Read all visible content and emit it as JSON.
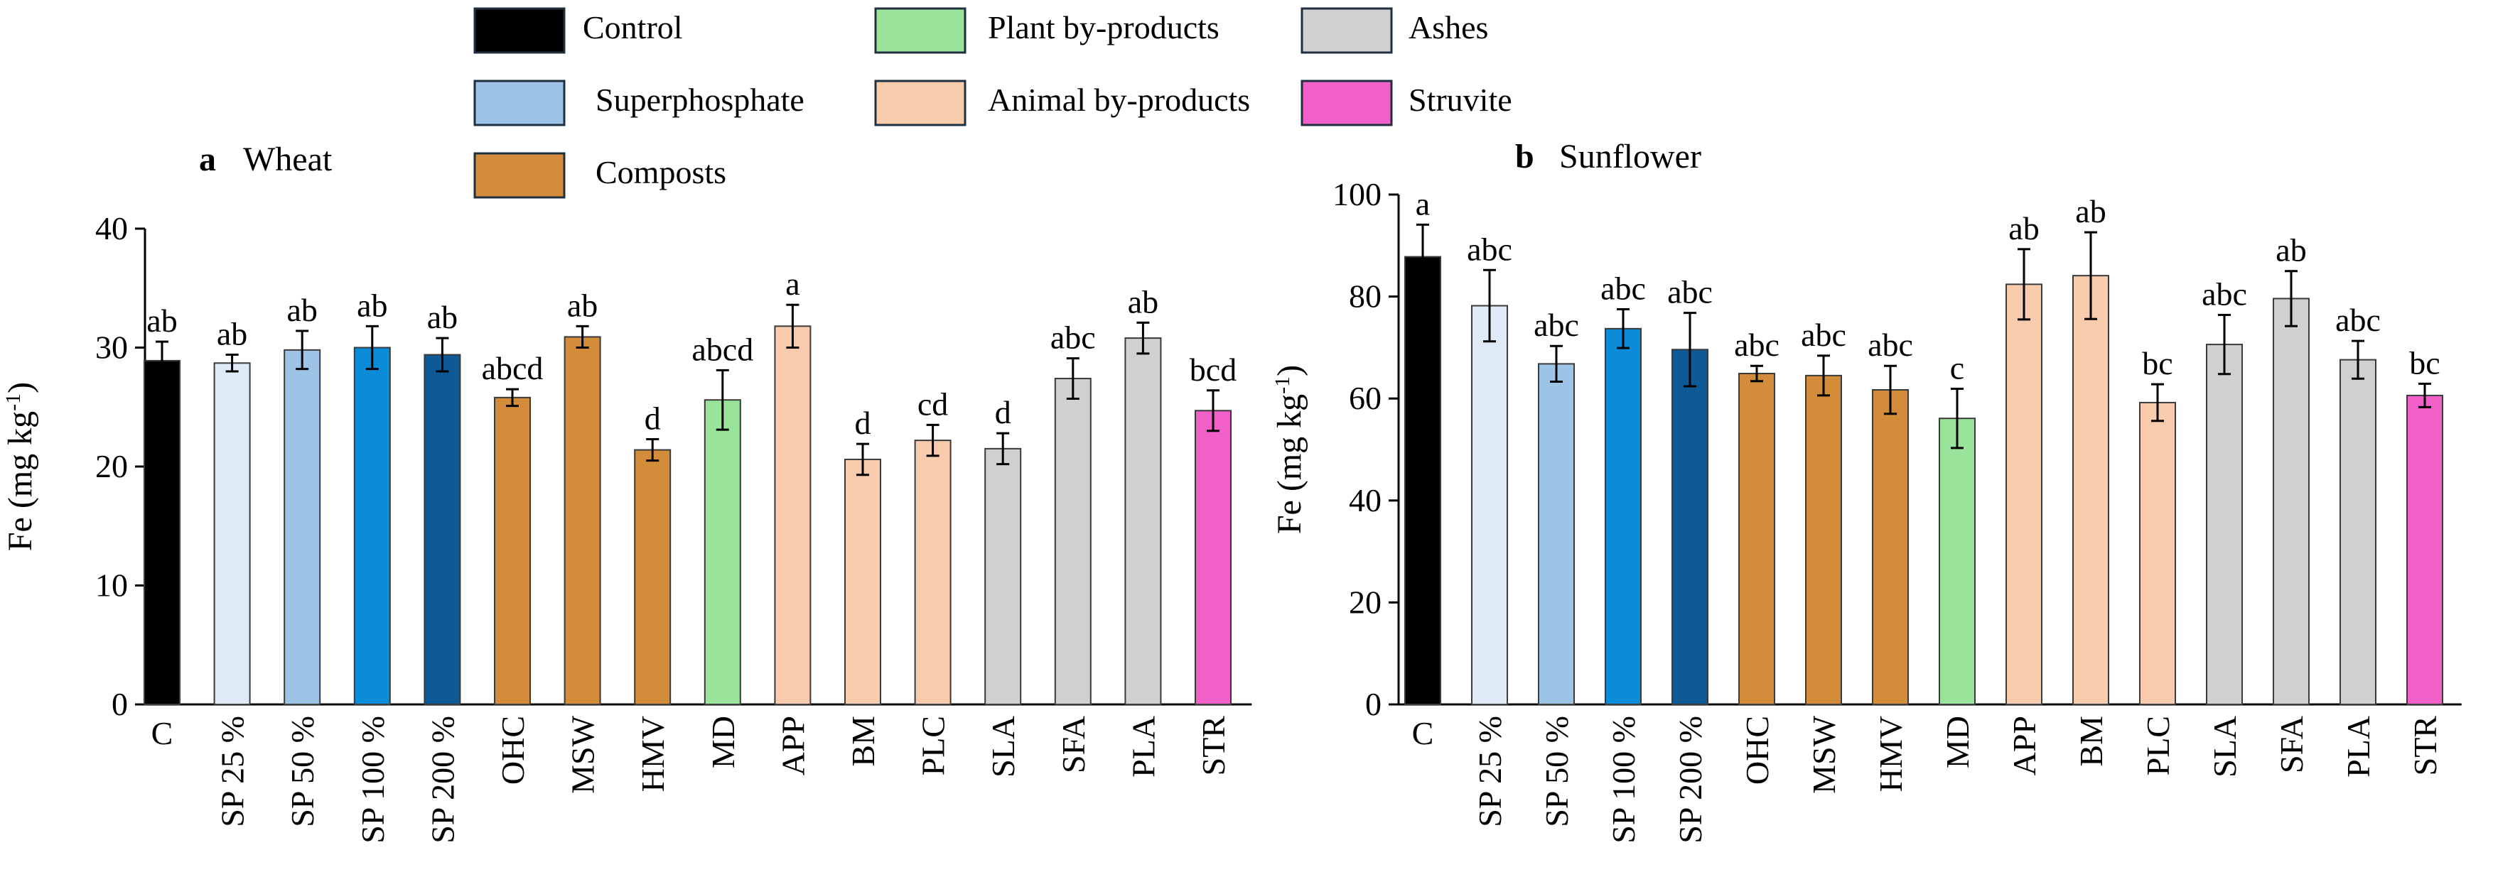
{
  "legend": [
    {
      "key": "control",
      "label": "Control",
      "color": "#000000"
    },
    {
      "key": "superphosphate",
      "label": "Superphosphate",
      "color": "#9DC3E6"
    },
    {
      "key": "composts",
      "label": "Composts",
      "color": "#D38D3A"
    },
    {
      "key": "plant",
      "label": "Plant by-products",
      "color": "#9AE39B"
    },
    {
      "key": "animal",
      "label": "Animal by-products",
      "color": "#F8CBAD"
    },
    {
      "key": "ashes",
      "label": "Ashes",
      "color": "#D0D0D0"
    },
    {
      "key": "struvite",
      "label": "Struvite",
      "color": "#F060C8"
    }
  ],
  "chart_data": [
    {
      "type": "bar",
      "panel_letter": "a",
      "title": "Wheat",
      "xlabel": "",
      "ylabel": "Fe (mg kg",
      "ylabel_sup": "-1",
      "ylabel_close": ")",
      "ylim": [
        0,
        40
      ],
      "yticks": [
        "0",
        "10",
        "20",
        "30",
        "40"
      ],
      "categories": [
        "C",
        "SP 25 %",
        "SP 50 %",
        "SP 100 %",
        "SP 200 %",
        "OHC",
        "MSW",
        "HMV",
        "MD",
        "APP",
        "BM",
        "PLC",
        "SLA",
        "SFA",
        "PLA",
        "STR"
      ],
      "values": [
        28.9,
        28.7,
        29.8,
        30.0,
        29.4,
        25.8,
        30.9,
        21.4,
        25.6,
        31.8,
        20.6,
        22.2,
        21.5,
        27.4,
        30.8,
        24.7
      ],
      "errors": [
        1.6,
        0.7,
        1.6,
        1.8,
        1.4,
        0.7,
        0.9,
        0.9,
        2.5,
        1.8,
        1.3,
        1.3,
        1.3,
        1.7,
        1.3,
        1.7
      ],
      "letters": [
        "ab",
        "ab",
        "ab",
        "ab",
        "ab",
        "abcd",
        "ab",
        "d",
        "abcd",
        "a",
        "d",
        "cd",
        "d",
        "abc",
        "ab",
        "bcd"
      ],
      "colors": [
        "#000000",
        "#DEEBF7",
        "#9DC3E6",
        "#0A8CD8",
        "#0D5A96",
        "#D38D3A",
        "#D38D3A",
        "#D38D3A",
        "#9AE39B",
        "#F8CBAD",
        "#F8CBAD",
        "#F8CBAD",
        "#D0D0D0",
        "#D0D0D0",
        "#D0D0D0",
        "#F060C8"
      ]
    },
    {
      "type": "bar",
      "panel_letter": "b",
      "title": "Sunflower",
      "xlabel": "",
      "ylabel": "Fe (mg kg",
      "ylabel_sup": "-1",
      "ylabel_close": ")",
      "ylim": [
        0,
        100
      ],
      "yticks": [
        "0",
        "20",
        "40",
        "60",
        "80",
        "100"
      ],
      "categories": [
        "C",
        "SP 25 %",
        "SP 50 %",
        "SP 100 %",
        "SP 200 %",
        "OHC",
        "MSW",
        "HMV",
        "MD",
        "APP",
        "BM",
        "PLC",
        "SLA",
        "SFA",
        "PLA",
        "STR"
      ],
      "values": [
        87.8,
        78.2,
        66.8,
        73.7,
        69.6,
        64.9,
        64.5,
        61.7,
        56.1,
        82.4,
        84.1,
        59.2,
        70.6,
        79.6,
        67.6,
        60.6
      ],
      "errors": [
        6.3,
        7.0,
        3.5,
        3.8,
        7.2,
        1.5,
        3.9,
        4.7,
        5.8,
        6.9,
        8.5,
        3.6,
        5.8,
        5.4,
        3.7,
        2.3
      ],
      "letters": [
        "a",
        "abc",
        "abc",
        "abc",
        "abc",
        "abc",
        "abc",
        "abc",
        "c",
        "ab",
        "ab",
        "bc",
        "abc",
        "ab",
        "abc",
        "bc"
      ],
      "colors": [
        "#000000",
        "#DEEBF7",
        "#9DC3E6",
        "#0A8CD8",
        "#0D5A96",
        "#D38D3A",
        "#D38D3A",
        "#D38D3A",
        "#9AE39B",
        "#F8CBAD",
        "#F8CBAD",
        "#F8CBAD",
        "#D0D0D0",
        "#D0D0D0",
        "#D0D0D0",
        "#F060C8"
      ]
    }
  ]
}
